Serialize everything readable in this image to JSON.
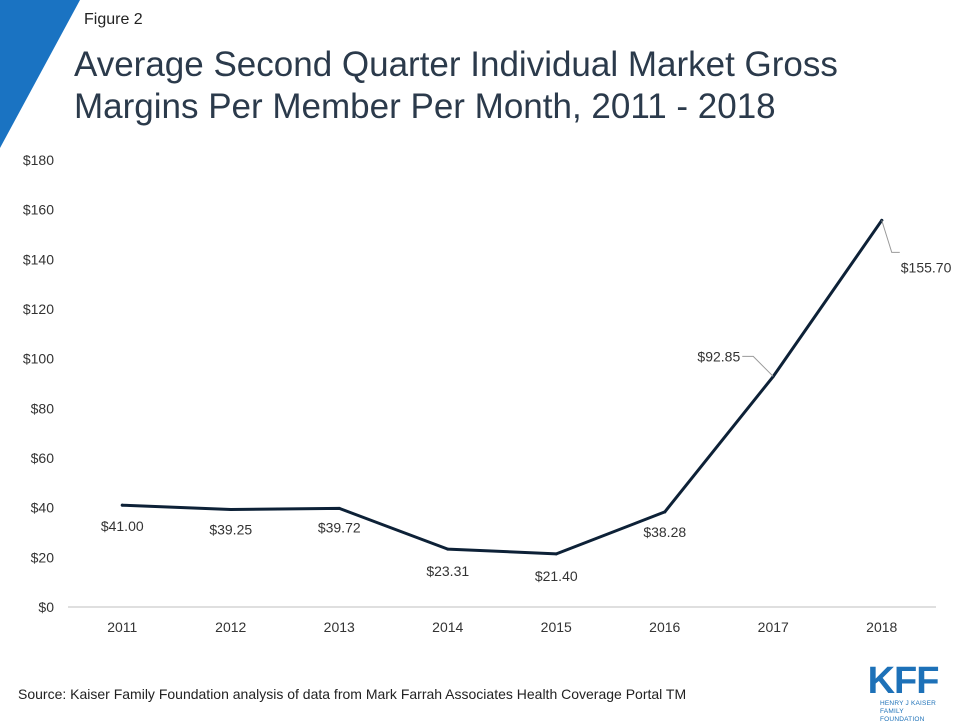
{
  "figure_label": "Figure 2",
  "title": "Average Second Quarter Individual Market Gross Margins Per Member Per Month, 2011 - 2018",
  "source": "Source: Kaiser Family Foundation analysis of data from Mark Farrah Associates Health Coverage Portal TM",
  "logo": {
    "mark": "KFF",
    "line1": "HENRY J KAISER",
    "line2": "FAMILY FOUNDATION"
  },
  "colors": {
    "line": "#0d2137",
    "corner": "#1a73c2",
    "axis": "#bfbfbf",
    "text": "#333333",
    "logo": "#1d71b8"
  },
  "chart_data": {
    "type": "line",
    "categories": [
      "2011",
      "2012",
      "2013",
      "2014",
      "2015",
      "2016",
      "2017",
      "2018"
    ],
    "series": [
      {
        "values": [
          41.0,
          39.25,
          39.72,
          23.31,
          21.4,
          38.28,
          92.85,
          155.7
        ],
        "labels": [
          "$41.00",
          "$39.25",
          "$39.72",
          "$23.31",
          "$21.40",
          "$38.28",
          "$92.85",
          "$155.70"
        ]
      }
    ],
    "ylim": [
      0,
      180
    ],
    "yticks": [
      0,
      20,
      40,
      60,
      80,
      100,
      120,
      140,
      160,
      180
    ],
    "ytick_labels": [
      "$0",
      "$20",
      "$40",
      "$60",
      "$80",
      "$100",
      "$120",
      "$140",
      "$160",
      "$180"
    ],
    "grid": false,
    "legend": "none"
  }
}
